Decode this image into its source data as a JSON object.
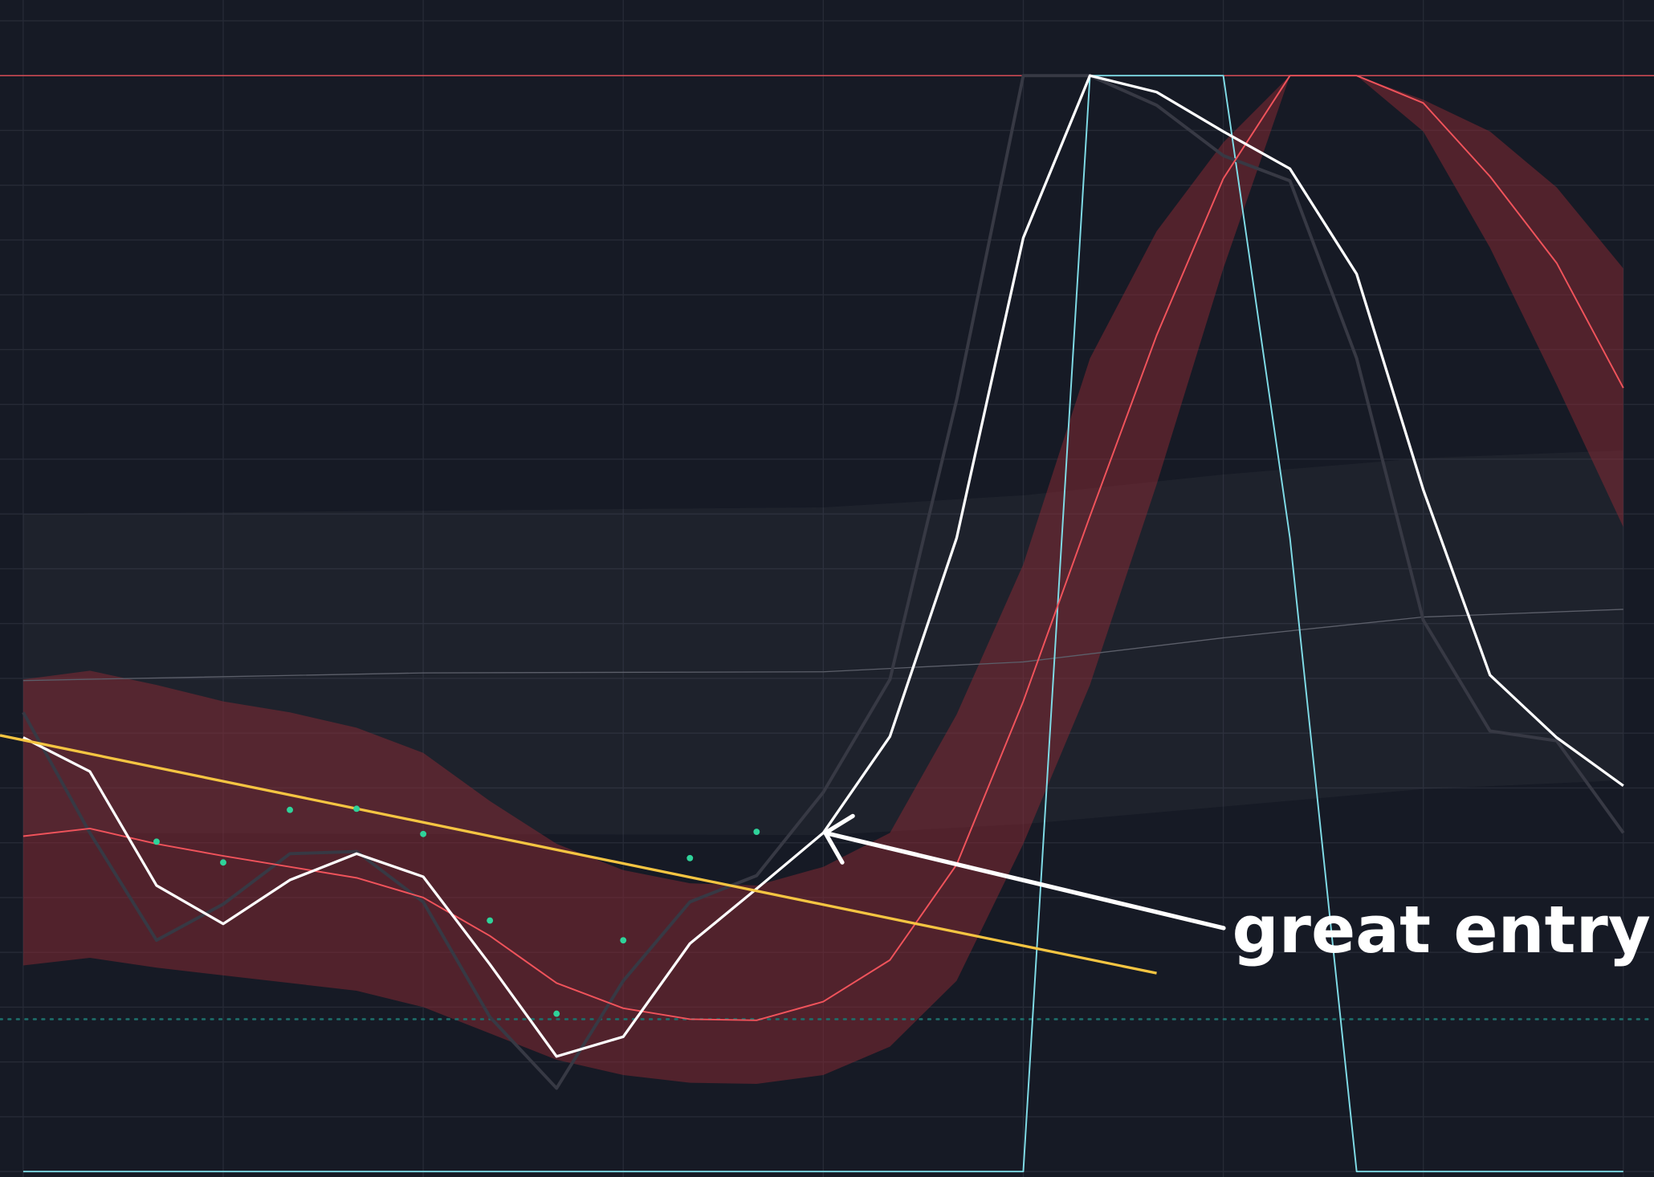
{
  "chart_data": {
    "type": "line",
    "background": "#161a25",
    "grid": true,
    "grid_color": "#262a36",
    "xlim": [
      -0.348,
      24.46
    ],
    "ylim": [
      -0.5,
      106.9
    ],
    "xticks": [
      0,
      3,
      6,
      9,
      12,
      15,
      18,
      21,
      24
    ],
    "yticks": [
      0,
      5,
      10,
      15,
      20,
      25,
      30,
      35,
      40,
      45,
      50,
      55,
      60,
      65,
      70,
      75,
      80,
      85,
      90,
      95,
      100,
      105
    ],
    "x": [
      0,
      1,
      2,
      3,
      4,
      5,
      6,
      7,
      8,
      9,
      10,
      11,
      12,
      13,
      14,
      15,
      16,
      17,
      18,
      19,
      20,
      21,
      22,
      23,
      24
    ],
    "bands": [
      {
        "color": "rgba(255,255,255,0.035)",
        "x": [
          0,
          12,
          15,
          18,
          21,
          24
        ],
        "upper": [
          60.0,
          60.6,
          61.7,
          63.6,
          65.1,
          65.8
        ],
        "lower": [
          30.9,
          30.7,
          31.7,
          33.3,
          34.9,
          35.7
        ]
      },
      {
        "color": "rgba(140,42,52,0.5)",
        "x": [
          0,
          1,
          2,
          3,
          4,
          5,
          6,
          7,
          8,
          9,
          10,
          11,
          12,
          13,
          14,
          15,
          16,
          17,
          18,
          19,
          20,
          21,
          22,
          23,
          24
        ],
        "upper": [
          44.9,
          45.7,
          44.4,
          42.9,
          41.9,
          40.5,
          38.2,
          33.8,
          29.9,
          27.5,
          26.3,
          26.1,
          27.8,
          30.9,
          41.7,
          55.4,
          74.2,
          85.8,
          93.9,
          100,
          100,
          97.8,
          94.9,
          89.8,
          82.4
        ],
        "lower": [
          18.8,
          19.5,
          18.6,
          17.9,
          17.2,
          16.5,
          15.0,
          12.6,
          10.2,
          8.8,
          8.1,
          8.0,
          8.8,
          11.4,
          17.4,
          29.9,
          44.4,
          62.7,
          82.4,
          100,
          100,
          94.9,
          84.3,
          71.8,
          58.8
        ]
      }
    ],
    "hlines": [
      {
        "value": 100,
        "color": "#e8505a",
        "dotted": false
      },
      {
        "value": 13.9,
        "color": "#1d6e6a",
        "dotted": true
      }
    ],
    "series": [
      {
        "color": "#5c5f6a",
        "width": 1,
        "x": [
          0,
          6,
          12,
          15,
          18,
          21,
          24
        ],
        "values": [
          44.8,
          45.5,
          45.6,
          46.5,
          48.7,
          50.6,
          51.3
        ]
      },
      {
        "color": "#7fdbe6",
        "width": 1.5,
        "values": [
          0,
          0,
          0,
          0,
          0,
          0,
          0,
          0,
          0,
          0,
          0,
          0,
          0,
          0,
          0,
          0,
          100,
          100,
          100,
          57.8,
          0,
          0,
          0,
          0,
          0
        ]
      },
      {
        "color": "#373944",
        "width": 3,
        "values": [
          41.9,
          30.9,
          21.1,
          24.4,
          29.0,
          29.2,
          24.6,
          14.1,
          7.6,
          17.4,
          24.6,
          27.0,
          34.6,
          44.9,
          70.4,
          100,
          100,
          97.3,
          92.7,
          90.4,
          74.2,
          50.3,
          40.2,
          39.3,
          30.9
        ]
      },
      {
        "color": "#f0535b",
        "width": 1.5,
        "values": [
          30.6,
          31.3,
          29.9,
          28.8,
          27.8,
          26.8,
          25.0,
          21.5,
          17.2,
          14.9,
          13.9,
          13.8,
          15.5,
          19.3,
          28.0,
          42.9,
          59.8,
          76.3,
          90.6,
          100,
          100,
          97.5,
          90.8,
          82.9,
          71.5
        ]
      },
      {
        "color": "#ffffff",
        "width": 2.5,
        "values": [
          39.6,
          36.5,
          26.1,
          22.6,
          26.6,
          29.0,
          26.9,
          18.9,
          10.5,
          12.3,
          20.8,
          25.8,
          30.9,
          39.7,
          57.8,
          85.2,
          100,
          98.5,
          94.9,
          91.5,
          81.9,
          62.2,
          45.3,
          39.6,
          35.2
        ]
      },
      {
        "color": "#f5c542",
        "width": 2.5,
        "x": [
          -0.348,
          17
        ],
        "values": [
          39.8,
          18.1
        ]
      }
    ],
    "points": {
      "color": "#2fd39a",
      "values": [
        null,
        null,
        30.1,
        28.2,
        33.0,
        33.1,
        30.8,
        22.9,
        14.4,
        21.1,
        28.6,
        31.0,
        null,
        null,
        null,
        null,
        null,
        null,
        null,
        null,
        null,
        null,
        null,
        null,
        null
      ]
    },
    "annotation": {
      "text": "great entry",
      "x": 12,
      "y": 30.9
    }
  }
}
